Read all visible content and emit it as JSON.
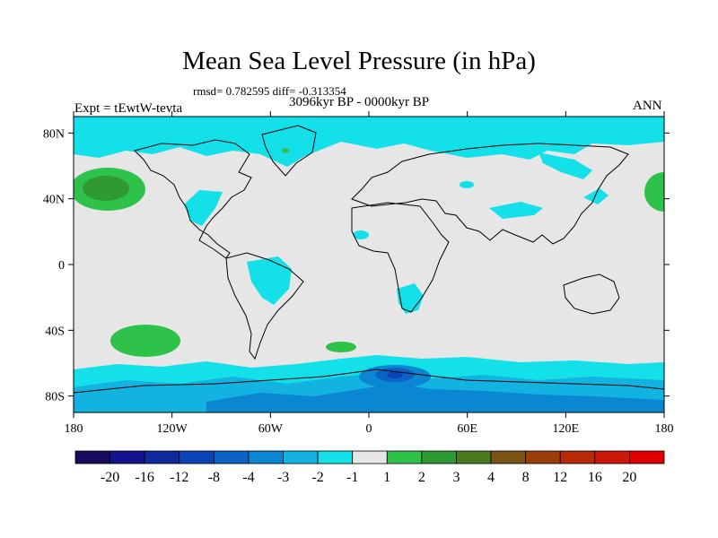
{
  "title": "Mean Sea Level Pressure (in hPa)",
  "stats": {
    "rmsd_label": "rmsd= 0.782595",
    "diff_label": "diff= -0.313354"
  },
  "period": "3096kyr BP - 0000kyr BP",
  "experiment": "Expt = tEwtW-tevta",
  "season": "ANN",
  "map": {
    "lon_ticks": [
      "180",
      "120W",
      "60W",
      "0",
      "60E",
      "120E",
      "180"
    ],
    "lat_ticks": [
      "80N",
      "40N",
      "0",
      "40S",
      "80S"
    ]
  },
  "colorbar": {
    "labels": [
      "-20",
      "-16",
      "-12",
      "-8",
      "-4",
      "-3",
      "-2",
      "-1",
      "1",
      "2",
      "3",
      "4",
      "8",
      "12",
      "16",
      "20"
    ],
    "colors": [
      "#1a0a5e",
      "#14148f",
      "#0f2a9c",
      "#0b44b4",
      "#0a63c4",
      "#0a86d2",
      "#12b3e0",
      "#14e0ea",
      "#e6e6e6",
      "#2ec24a",
      "#2f9a34",
      "#4c7a20",
      "#7a5414",
      "#9c3e0c",
      "#b62a08",
      "#cc1808",
      "#e00000"
    ]
  }
}
